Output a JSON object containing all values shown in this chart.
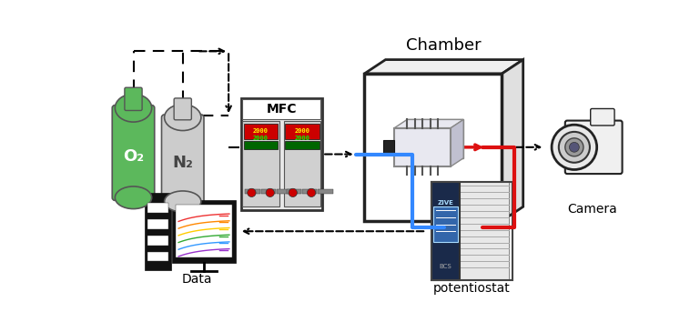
{
  "bg_color": "#ffffff",
  "o2_color": "#5cb85c",
  "n2_color": "#cccccc",
  "text_color_white": "#ffffff",
  "text_color_dark": "#333333",
  "camera_label": "Camera",
  "data_label": "Data",
  "potentiostat_label": "potentiostat",
  "chamber_label": "Chamber",
  "mfc_label": "MFC"
}
